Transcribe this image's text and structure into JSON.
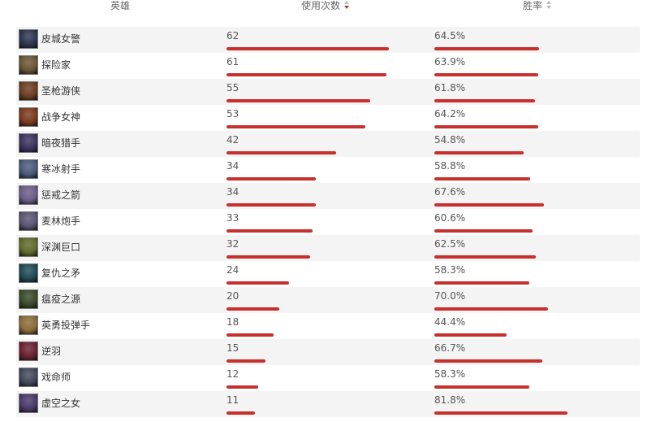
{
  "header": {
    "hero": "英雄",
    "uses": "使用次数",
    "winrate": "胜率"
  },
  "rows": [
    {
      "name": "皮城女警",
      "uses": "62",
      "uses_value": 62,
      "winrate": "64.5%",
      "winrate_value": 64.5,
      "icon": "caitlyn-portrait-icon",
      "color": "#2d3550"
    },
    {
      "name": "探险家",
      "uses": "61",
      "uses_value": 61,
      "winrate": "63.9%",
      "winrate_value": 63.9,
      "icon": "ezreal-portrait-icon",
      "color": "#6a5535"
    },
    {
      "name": "圣枪游侠",
      "uses": "55",
      "uses_value": 55,
      "winrate": "61.8%",
      "winrate_value": 61.8,
      "icon": "lucian-portrait-icon",
      "color": "#6b3f22"
    },
    {
      "name": "战争女神",
      "uses": "53",
      "uses_value": 53,
      "winrate": "64.2%",
      "winrate_value": 64.2,
      "icon": "sivir-portrait-icon",
      "color": "#7a3a1e"
    },
    {
      "name": "暗夜猎手",
      "uses": "42",
      "uses_value": 42,
      "winrate": "54.8%",
      "winrate_value": 54.8,
      "icon": "vayne-portrait-icon",
      "color": "#3e3460"
    },
    {
      "name": "寒冰射手",
      "uses": "34",
      "uses_value": 34,
      "winrate": "58.8%",
      "winrate_value": 58.8,
      "icon": "ashe-portrait-icon",
      "color": "#4a5a78"
    },
    {
      "name": "惩戒之箭",
      "uses": "34",
      "uses_value": 34,
      "winrate": "67.6%",
      "winrate_value": 67.6,
      "icon": "varus-portrait-icon",
      "color": "#6a5d88"
    },
    {
      "name": "麦林炮手",
      "uses": "33",
      "uses_value": 33,
      "winrate": "60.6%",
      "winrate_value": 60.6,
      "icon": "tristana-portrait-icon",
      "color": "#5a5470"
    },
    {
      "name": "深渊巨口",
      "uses": "32",
      "uses_value": 32,
      "winrate": "62.5%",
      "winrate_value": 62.5,
      "icon": "kogmaw-portrait-icon",
      "color": "#5f6a2a"
    },
    {
      "name": "复仇之矛",
      "uses": "24",
      "uses_value": 24,
      "winrate": "58.3%",
      "winrate_value": 58.3,
      "icon": "kalista-portrait-icon",
      "color": "#1f4a55"
    },
    {
      "name": "瘟疫之源",
      "uses": "20",
      "uses_value": 20,
      "winrate": "70.0%",
      "winrate_value": 70.0,
      "icon": "twitch-portrait-icon",
      "color": "#3a4a28"
    },
    {
      "name": "英勇投弹手",
      "uses": "18",
      "uses_value": 18,
      "winrate": "44.4%",
      "winrate_value": 44.4,
      "icon": "corki-portrait-icon",
      "color": "#8a6a3a"
    },
    {
      "name": "逆羽",
      "uses": "15",
      "uses_value": 15,
      "winrate": "66.7%",
      "winrate_value": 66.7,
      "icon": "xayah-portrait-icon",
      "color": "#6a2230"
    },
    {
      "name": "戏命师",
      "uses": "12",
      "uses_value": 12,
      "winrate": "58.3%",
      "winrate_value": 58.3,
      "icon": "jhin-portrait-icon",
      "color": "#44485a"
    },
    {
      "name": "虚空之女",
      "uses": "11",
      "uses_value": 11,
      "winrate": "81.8%",
      "winrate_value": 81.8,
      "icon": "kaisa-portrait-icon",
      "color": "#4a3a6a"
    }
  ],
  "colors": {
    "bar": "#c8302d",
    "row_alt": "#f4f4f4",
    "sort_active": "#c8302d",
    "sort_inactive": "#bbbbbb"
  }
}
